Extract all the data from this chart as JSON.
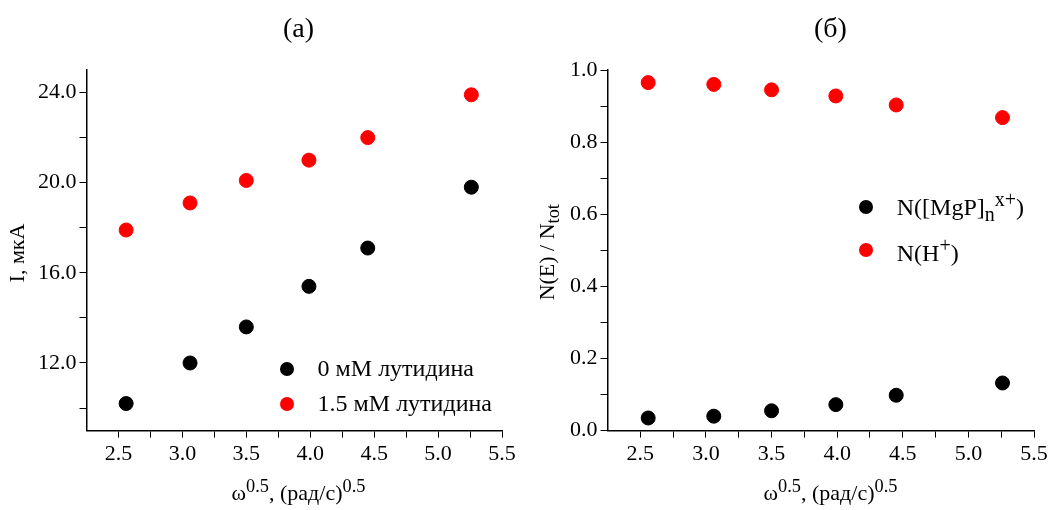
{
  "chart_data": [
    {
      "type": "scatter",
      "title": "(a)",
      "xlabel": "ω$^{0.5}$, (рад/с)$^{0.5}$",
      "ylabel": "I, мкА",
      "x": [
        2.56,
        3.06,
        3.5,
        3.99,
        4.45,
        5.26
      ],
      "series": [
        {
          "name": "0 мМ лутидина",
          "color": "#000000",
          "values": [
            10.2,
            12.0,
            13.6,
            15.4,
            17.1,
            19.8
          ]
        },
        {
          "name": "1.5 мМ лутидина",
          "color": "#ff0000",
          "values": [
            17.9,
            19.1,
            20.1,
            21.0,
            22.0,
            23.9
          ]
        }
      ],
      "xlim": [
        2.25,
        5.5
      ],
      "xticks": [
        {
          "value": 2.5,
          "label": "2.5"
        },
        {
          "value": 2.75,
          "label": null
        },
        {
          "value": 3,
          "label": "3.0"
        },
        {
          "value": 3.25,
          "label": null
        },
        {
          "value": 3.5,
          "label": "3.5"
        },
        {
          "value": 3.75,
          "label": null
        },
        {
          "value": 4,
          "label": "4.0"
        },
        {
          "value": 4.25,
          "label": null
        },
        {
          "value": 4.5,
          "label": "4.5"
        },
        {
          "value": 4.75,
          "label": null
        },
        {
          "value": 5,
          "label": "5.0"
        },
        {
          "value": 5.25,
          "label": null
        },
        {
          "value": 5.5,
          "label": "5.5"
        }
      ],
      "ylim": [
        9,
        25
      ],
      "yticks": [
        {
          "value": 10,
          "label": null
        },
        {
          "value": 12,
          "label": "12.0"
        },
        {
          "value": 14,
          "label": null
        },
        {
          "value": 16,
          "label": "16.0"
        },
        {
          "value": 18,
          "label": null
        },
        {
          "value": 20,
          "label": "20.0"
        },
        {
          "value": 22,
          "label": null
        },
        {
          "value": 24,
          "label": "24.0"
        }
      ],
      "marker": "circle",
      "legend": "bottom right",
      "grid": false
    },
    {
      "type": "scatter",
      "title": "(б)",
      "xlabel": "ω$^{0.5}$, (рад/с)$^{0.5}$",
      "ylabel": "N(E) / N$_{tot}$",
      "x": [
        2.56,
        3.06,
        3.5,
        3.99,
        4.45,
        5.26
      ],
      "series": [
        {
          "name": "N([MgP]$_{n}$$^{x+}$)",
          "color": "#000000",
          "values": [
            0.035,
            0.04,
            0.055,
            0.072,
            0.098,
            0.132
          ]
        },
        {
          "name": "N(H$^{+}$)",
          "color": "#ff0000",
          "values": [
            0.965,
            0.96,
            0.945,
            0.928,
            0.903,
            0.868
          ]
        }
      ],
      "xlim": [
        2.25,
        5.5
      ],
      "xticks": [
        {
          "value": 2.5,
          "label": "2.5"
        },
        {
          "value": 2.75,
          "label": null
        },
        {
          "value": 3,
          "label": "3.0"
        },
        {
          "value": 3.25,
          "label": null
        },
        {
          "value": 3.5,
          "label": "3.5"
        },
        {
          "value": 3.75,
          "label": null
        },
        {
          "value": 4,
          "label": "4.0"
        },
        {
          "value": 4.25,
          "label": null
        },
        {
          "value": 4.5,
          "label": "4.5"
        },
        {
          "value": 4.75,
          "label": null
        },
        {
          "value": 5,
          "label": "5.0"
        },
        {
          "value": 5.25,
          "label": null
        },
        {
          "value": 5.5,
          "label": "5.5"
        }
      ],
      "ylim": [
        0,
        1
      ],
      "yticks": [
        {
          "value": 0,
          "label": "0.0"
        },
        {
          "value": 0.1,
          "label": null
        },
        {
          "value": 0.2,
          "label": "0.2"
        },
        {
          "value": 0.3,
          "label": null
        },
        {
          "value": 0.4,
          "label": "0.4"
        },
        {
          "value": 0.5,
          "label": null
        },
        {
          "value": 0.6,
          "label": "0.6"
        },
        {
          "value": 0.7,
          "label": null
        },
        {
          "value": 0.8,
          "label": "0.8"
        },
        {
          "value": 0.9,
          "label": null
        },
        {
          "value": 1,
          "label": "1.0"
        }
      ],
      "marker": "circle",
      "legend": "right",
      "grid": false
    }
  ]
}
